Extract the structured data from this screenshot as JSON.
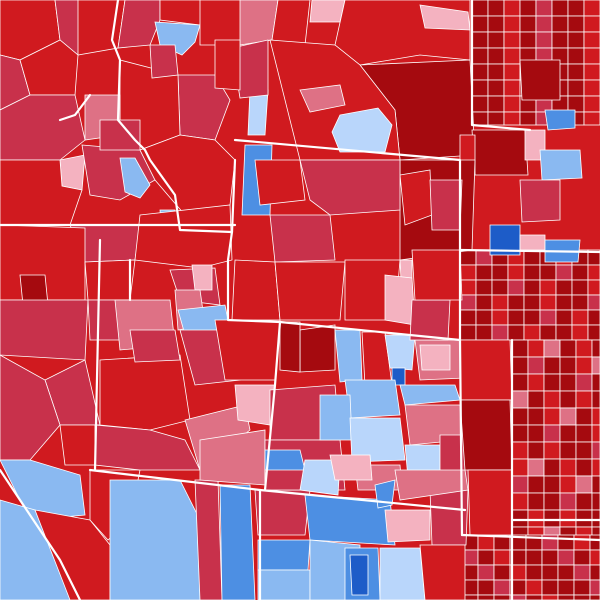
{
  "legend_scale": [
    {
      "key": "r5",
      "color": "#a50a0f"
    },
    {
      "key": "r4",
      "color": "#d01a1f"
    },
    {
      "key": "r3",
      "color": "#c8314b"
    },
    {
      "key": "r2",
      "color": "#de7185"
    },
    {
      "key": "r1",
      "color": "#f4b2c0"
    },
    {
      "key": "d1",
      "color": "#b9d6fb"
    },
    {
      "key": "d2",
      "color": "#8ab9f1"
    },
    {
      "key": "d3",
      "color": "#4d8fe3"
    },
    {
      "key": "d4",
      "color": "#1d5cc8"
    }
  ]
}
